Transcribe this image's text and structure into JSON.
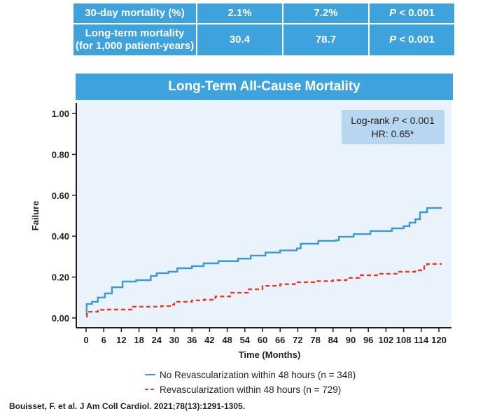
{
  "summary_table": {
    "rows": [
      {
        "label": "30-day mortality (%)",
        "label_line2": "",
        "col1": "2.1%",
        "col2": "7.2%",
        "p_prefix": "P",
        "p_value": " < 0.001"
      },
      {
        "label": "Long-term mortality",
        "label_line2": "(for 1,000 patient-years)",
        "col1": "30.4",
        "col2": "78.7",
        "p_prefix": "P",
        "p_value": " < 0.001"
      }
    ]
  },
  "colors": {
    "accent": "#3ea3dc",
    "plot_background": "#eaf3fb",
    "annotation_box": "#b7d6ef",
    "series_no_revasc": "#3a9ad4",
    "series_revasc": "#e8392c"
  },
  "chart_data": {
    "type": "line",
    "title": "Long-Term All-Cause Mortality",
    "xlabel": "Time (Months)",
    "ylabel": "Failure",
    "xlim": [
      0,
      120
    ],
    "ylim": [
      0,
      1.0
    ],
    "x_ticks": [
      0,
      6,
      12,
      18,
      24,
      30,
      36,
      42,
      48,
      54,
      60,
      66,
      72,
      78,
      84,
      90,
      96,
      102,
      108,
      114,
      120
    ],
    "y_ticks": [
      0.0,
      0.2,
      0.4,
      0.6,
      0.8,
      1.0
    ],
    "y_tick_labels": [
      "0.00",
      "0.20",
      "0.40",
      "0.60",
      "0.80",
      "1.00"
    ],
    "grid": false,
    "annotation": {
      "line1_prefix": "Log-rank ",
      "line1_p": "P",
      "line1_suffix": " < 0.001",
      "line2": "HR: 0.65*",
      "placement": "top-right"
    },
    "legend_placement": "bottom-center",
    "series": [
      {
        "name": "No Revascularization within 48 hours (n = 348)",
        "style": "solid",
        "x": [
          0,
          0.2,
          2,
          4,
          6.4,
          8.8,
          12.4,
          17,
          22,
          24,
          28,
          31,
          36,
          40,
          45,
          51.7,
          56,
          61,
          66,
          71.7,
          73,
          79,
          85,
          86,
          91,
          96.7,
          104,
          108,
          110,
          112,
          113.6,
          116,
          121
        ],
        "y": [
          0.014,
          0.068,
          0.079,
          0.1,
          0.12,
          0.15,
          0.178,
          0.185,
          0.205,
          0.219,
          0.226,
          0.243,
          0.253,
          0.267,
          0.278,
          0.29,
          0.305,
          0.32,
          0.33,
          0.34,
          0.363,
          0.377,
          0.38,
          0.397,
          0.41,
          0.425,
          0.438,
          0.449,
          0.466,
          0.483,
          0.517,
          0.538,
          0.538
        ]
      },
      {
        "name": "Revascularization within 48 hours (n = 729)",
        "style": "dashed",
        "x": [
          0,
          0.3,
          4,
          6.4,
          16,
          25.5,
          29,
          30,
          36,
          40,
          44,
          49,
          55,
          60,
          66,
          71,
          78,
          84,
          88.6,
          93,
          100,
          106,
          112,
          115,
          116,
          121
        ],
        "y": [
          0.007,
          0.03,
          0.04,
          0.041,
          0.055,
          0.058,
          0.065,
          0.079,
          0.086,
          0.089,
          0.105,
          0.123,
          0.14,
          0.157,
          0.165,
          0.175,
          0.18,
          0.185,
          0.196,
          0.209,
          0.216,
          0.226,
          0.233,
          0.253,
          0.264,
          0.264
        ]
      }
    ]
  },
  "citation": "Bouisset, F. et al. J Am Coll Cardiol. 2021;78(13):1291-1305."
}
